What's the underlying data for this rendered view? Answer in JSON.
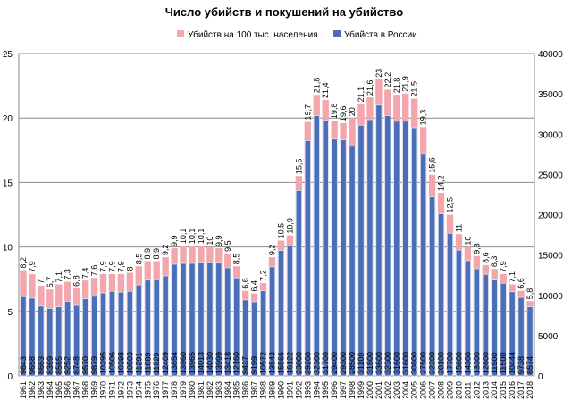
{
  "chart_data": {
    "type": "bar",
    "title": "Число убийств и покушений на убийство",
    "legend_position": "top-center",
    "grid": true,
    "colors": {
      "rate": "#f4a6ad",
      "murders": "#4a6fb8",
      "murders_edge": "#d9e4f6"
    },
    "series": [
      {
        "name": "Убийств на 100 тыс. населения",
        "axis": "left"
      },
      {
        "name": "Убийств в России",
        "axis": "right"
      }
    ],
    "left_axis": {
      "ylim": [
        0,
        25
      ],
      "ticks": [
        "0",
        "5",
        "10",
        "15",
        "20",
        "25"
      ]
    },
    "right_axis": {
      "ylim": [
        0,
        40000
      ],
      "ticks": [
        "0",
        "5000",
        "10000",
        "15000",
        "20000",
        "25000",
        "30000",
        "35000",
        "40000"
      ]
    },
    "categories": [
      "1961",
      "1962",
      "1963",
      "1964",
      "1965",
      "1966",
      "1967",
      "1968",
      "1969",
      "1970",
      "1971",
      "1972",
      "1973",
      "1974",
      "1975",
      "1976",
      "1977",
      "1978",
      "1979",
      "1980",
      "1981",
      "1982",
      "1983",
      "1984",
      "1985",
      "1986",
      "1987",
      "1988",
      "1989",
      "1990",
      "1991",
      "1992",
      "1993",
      "1994",
      "1995",
      "1996",
      "1997",
      "1998",
      "1999",
      "2000",
      "2001",
      "2002",
      "2003",
      "2004",
      "2005",
      "2006",
      "2007",
      "2008",
      "2009",
      "2010",
      "2011",
      "2012",
      "2013",
      "2014",
      "2015",
      "2016",
      "2017",
      "2018"
    ],
    "rate_values": [
      8.2,
      7.9,
      7,
      6.7,
      7.1,
      7.3,
      6.8,
      7.4,
      7.6,
      7.9,
      7.9,
      7.9,
      8,
      8.5,
      8.9,
      8.9,
      9.2,
      9.9,
      10.1,
      10.1,
      10.1,
      10,
      9.9,
      9.5,
      8.5,
      6.6,
      6.4,
      7.2,
      9.2,
      10.5,
      10.9,
      15.5,
      19.7,
      21.8,
      21.4,
      19.8,
      19.6,
      20,
      21.1,
      21.6,
      23,
      22.2,
      21.8,
      21.9,
      21.5,
      19.3,
      15.6,
      14.2,
      12.5,
      11,
      10,
      9.3,
      8.6,
      8.3,
      7.9,
      7.1,
      6.6,
      5.8
    ],
    "rate_labels": [
      "8,2",
      "7,9",
      "7",
      "6,7",
      "7,1",
      "7,3",
      "6,8",
      "7,4",
      "7,6",
      "7,9",
      "7,9",
      "7,9",
      "8",
      "8,5",
      "8,9",
      "8,9",
      "9,2",
      "9,9",
      "10,1",
      "10,1",
      "10,1",
      "10",
      "9,9",
      "9,5",
      "8,5",
      "6,6",
      "6,4",
      "7,2",
      "9,2",
      "10,5",
      "10,9",
      "15,5",
      "19,7",
      "21,8",
      "21,4",
      "19,8",
      "19,6",
      "20",
      "21,1",
      "21,6",
      "23",
      "22,2",
      "21,8",
      "21,9",
      "21,5",
      "19,3",
      "15,6",
      "14,2",
      "12,5",
      "11",
      "10",
      "9,3",
      "8,6",
      "8,3",
      "7,9",
      "7,1",
      "6,6",
      "5,8"
    ],
    "murder_values": [
      9843,
      9658,
      8663,
      8369,
      8565,
      9252,
      8748,
      9570,
      9879,
      10295,
      10506,
      10398,
      10503,
      11291,
      11889,
      11929,
      12409,
      13854,
      13960,
      13965,
      14013,
      14030,
      13999,
      13418,
      12160,
      9437,
      9199,
      10572,
      13543,
      15566,
      16122,
      23000,
      29200,
      32300,
      31700,
      29400,
      29300,
      28500,
      31100,
      31800,
      33600,
      32300,
      31600,
      31600,
      30800,
      27500,
      22200,
      20100,
      17700,
      15600,
      14300,
      13300,
      12600,
      11900,
      11500,
      10444,
      9738,
      8574
    ]
  }
}
